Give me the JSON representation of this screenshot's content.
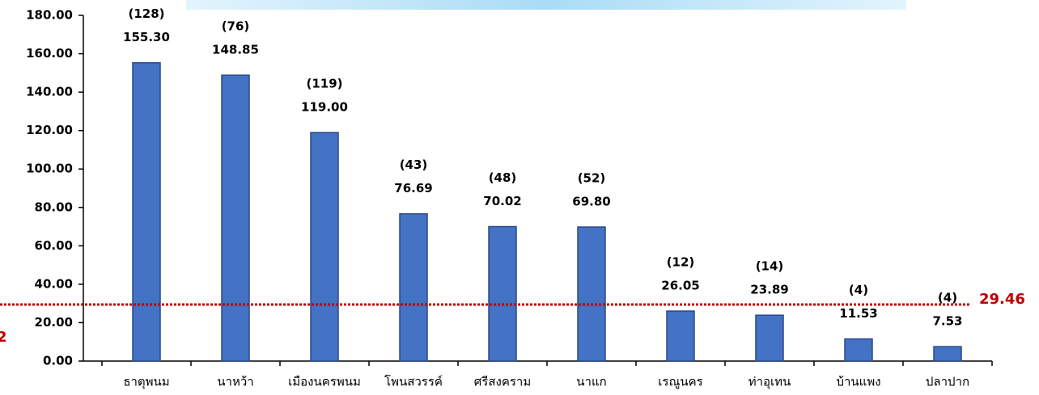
{
  "chart_data": {
    "type": "bar",
    "categories": [
      "ธาตุพนม",
      "นาหว้า",
      "เมืองนครพนม",
      "โพนสวรรค์",
      "ศรีสงคราม",
      "นาแก",
      "เรณูนคร",
      "ท่าอุเทน",
      "บ้านแพง",
      "ปลาปาก"
    ],
    "values": [
      155.3,
      148.85,
      119.0,
      76.69,
      70.02,
      69.8,
      26.05,
      23.89,
      11.53,
      7.53
    ],
    "value_labels": [
      "155.30",
      "148.85",
      "119.00",
      "76.69",
      "70.02",
      "69.80",
      "26.05",
      "23.89",
      "11.53",
      "7.53"
    ],
    "count_labels": [
      "(128)",
      "(76)",
      "(119)",
      "(43)",
      "(48)",
      "(52)",
      "(12)",
      "(14)",
      "(4)",
      "(4)"
    ],
    "color": "#4472c4",
    "ylim": [
      0,
      180
    ],
    "yticks": [
      {
        "value": 0,
        "label": "0.00"
      },
      {
        "value": 20,
        "label": "20.00"
      },
      {
        "value": 40,
        "label": "40.00"
      },
      {
        "value": 60,
        "label": "60.00"
      },
      {
        "value": 80,
        "label": "80.00"
      },
      {
        "value": 100,
        "label": "100.00"
      },
      {
        "value": 120,
        "label": "120.00"
      },
      {
        "value": 140,
        "label": "140.00"
      },
      {
        "value": 160,
        "label": "160.00"
      },
      {
        "value": 180,
        "label": "180.00"
      }
    ],
    "reference_line": {
      "value": 29.46,
      "label": "29.46",
      "color": "#c00000"
    },
    "left_label": "2"
  }
}
